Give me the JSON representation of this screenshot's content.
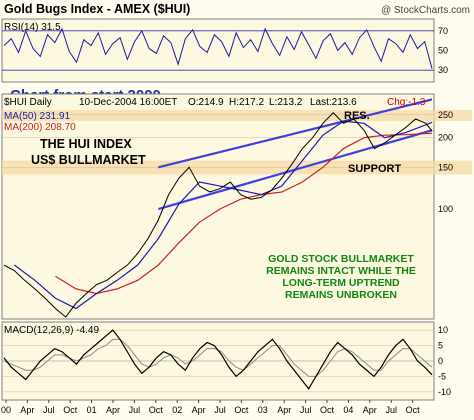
{
  "header": {
    "title": "Gold Bugs Index - AMEX ($HUI)",
    "watermark": "@ StockCharts.com"
  },
  "chart_data": [
    {
      "type": "line",
      "panel": "RSI",
      "label": "RSI(14) 31.5",
      "series": [
        {
          "name": "RSI(14)",
          "color": "#1a1aa8",
          "values": [
            55,
            62,
            48,
            70,
            52,
            44,
            66,
            58,
            72,
            49,
            38,
            61,
            55,
            68,
            46,
            57,
            63,
            41,
            59,
            70,
            52,
            47,
            65,
            58,
            36,
            62,
            71,
            54,
            48,
            66,
            59,
            44,
            68,
            53,
            61,
            49,
            72,
            57,
            45,
            64,
            51,
            69,
            56,
            42,
            60,
            67,
            50,
            58,
            46,
            63,
            71,
            54,
            39,
            62,
            57,
            48,
            66,
            52,
            59,
            31.5
          ]
        }
      ],
      "ylim": [
        20,
        80
      ],
      "y_ticks": [
        30,
        50,
        70
      ],
      "reference_lines": [
        30,
        70
      ],
      "overlay_text": "Chart from start 2000",
      "overlay_color": "#2233aa"
    },
    {
      "type": "line",
      "panel": "price",
      "scale": "log",
      "info_line": {
        "symbol": "$HUI Daily",
        "date": "10-Dec-2004 16:00ET",
        "open": "O:214.9",
        "high": "H:217.2",
        "low": "L:213.2",
        "last": "Last:213.6",
        "change": "Chg:-1.3"
      },
      "legend": [
        {
          "text": "MA(50) 231.91",
          "color": "#1a1aa8"
        },
        {
          "text": "MA(200) 208.70",
          "color": "#cc2222"
        }
      ],
      "ylim": [
        35,
        300
      ],
      "y_ticks": [
        150,
        200,
        250
      ],
      "y_tick_extra": [
        {
          "value": 100,
          "label": "100"
        }
      ],
      "series": [
        {
          "name": "HUI",
          "color": "#000000",
          "points": [
            [
              0.0,
              58
            ],
            [
              0.05,
              55
            ],
            [
              0.1,
              50
            ],
            [
              0.15,
              46
            ],
            [
              0.2,
              42
            ],
            [
              0.25,
              38
            ],
            [
              0.3,
              35
            ],
            [
              0.35,
              40
            ],
            [
              0.4,
              44
            ],
            [
              0.45,
              48
            ],
            [
              0.5,
              50
            ],
            [
              0.55,
              54
            ],
            [
              0.6,
              58
            ],
            [
              0.65,
              65
            ],
            [
              0.7,
              75
            ],
            [
              0.75,
              90
            ],
            [
              0.8,
              115
            ],
            [
              0.85,
              135
            ],
            [
              0.9,
              150
            ],
            [
              0.95,
              125
            ],
            [
              1.0,
              118
            ],
            [
              1.05,
              122
            ],
            [
              1.1,
              130
            ],
            [
              1.15,
              115
            ],
            [
              1.2,
              110
            ],
            [
              1.25,
              112
            ],
            [
              1.3,
              120
            ],
            [
              1.35,
              135
            ],
            [
              1.4,
              155
            ],
            [
              1.45,
              180
            ],
            [
              1.5,
              200
            ],
            [
              1.55,
              230
            ],
            [
              1.6,
              255
            ],
            [
              1.65,
              230
            ],
            [
              1.7,
              240
            ],
            [
              1.75,
              215
            ],
            [
              1.8,
              180
            ],
            [
              1.85,
              190
            ],
            [
              1.9,
              205
            ],
            [
              1.95,
              220
            ],
            [
              2.0,
              240
            ],
            [
              2.05,
              230
            ],
            [
              2.08,
              213.6
            ]
          ]
        },
        {
          "name": "MA(50)",
          "color": "#1a1aa8",
          "points": [
            [
              0.05,
              58
            ],
            [
              0.15,
              50
            ],
            [
              0.25,
              42
            ],
            [
              0.35,
              38
            ],
            [
              0.45,
              44
            ],
            [
              0.55,
              50
            ],
            [
              0.65,
              58
            ],
            [
              0.75,
              75
            ],
            [
              0.85,
              105
            ],
            [
              0.95,
              130
            ],
            [
              1.05,
              125
            ],
            [
              1.15,
              120
            ],
            [
              1.25,
              115
            ],
            [
              1.35,
              125
            ],
            [
              1.45,
              160
            ],
            [
              1.55,
              205
            ],
            [
              1.65,
              235
            ],
            [
              1.75,
              230
            ],
            [
              1.85,
              200
            ],
            [
              1.95,
              210
            ],
            [
              2.08,
              231.91
            ]
          ]
        },
        {
          "name": "MA(200)",
          "color": "#cc2222",
          "points": [
            [
              0.25,
              52
            ],
            [
              0.35,
              46
            ],
            [
              0.45,
              44
            ],
            [
              0.55,
              46
            ],
            [
              0.65,
              50
            ],
            [
              0.75,
              58
            ],
            [
              0.85,
              72
            ],
            [
              0.95,
              88
            ],
            [
              1.05,
              100
            ],
            [
              1.15,
              110
            ],
            [
              1.25,
              115
            ],
            [
              1.35,
              118
            ],
            [
              1.45,
              130
            ],
            [
              1.55,
              150
            ],
            [
              1.65,
              180
            ],
            [
              1.75,
              200
            ],
            [
              1.85,
              205
            ],
            [
              1.95,
              206
            ],
            [
              2.08,
              208.7
            ]
          ]
        }
      ],
      "trendlines": [
        {
          "points": [
            [
              0.75,
              150
            ],
            [
              2.08,
              290
            ]
          ],
          "color": "#4040dd"
        },
        {
          "points": [
            [
              0.75,
              100
            ],
            [
              2.08,
              215
            ]
          ],
          "color": "#4040dd"
        }
      ],
      "bands": [
        {
          "range": [
            235,
            262
          ],
          "label": "RES."
        },
        {
          "range": [
            140,
            160
          ],
          "label": "SUPPORT"
        }
      ],
      "annotations": [
        {
          "text": "THE HUI INDEX",
          "color": "#000000"
        },
        {
          "text": "US$ BULLMARKET",
          "color": "#000000"
        },
        {
          "text": "GOLD STOCK BULLMARKET",
          "color": "#118811"
        },
        {
          "text": "REMAINS INTACT WHILE THE",
          "color": "#118811"
        },
        {
          "text": "LONG-TERM UPTREND",
          "color": "#118811"
        },
        {
          "text": "REMAINS UNBROKEN",
          "color": "#118811"
        }
      ]
    },
    {
      "type": "line",
      "panel": "MACD",
      "label": "MACD(12,26,9) -4.49",
      "ylim": [
        -12,
        12
      ],
      "y_ticks": [
        10,
        5,
        0,
        -5,
        -10
      ],
      "series": [
        {
          "name": "MACD",
          "color": "#000000",
          "values": [
            1,
            -2,
            -4,
            -6,
            -3,
            0,
            2,
            4,
            3,
            1,
            -1,
            2,
            4,
            6,
            8,
            10,
            7,
            3,
            -1,
            -4,
            -2,
            1,
            3,
            2,
            -1,
            -3,
            1,
            4,
            6,
            5,
            2,
            -2,
            -5,
            -3,
            0,
            3,
            5,
            7,
            4,
            0,
            -3,
            -6,
            -9,
            -5,
            -1,
            3,
            6,
            4,
            2,
            -1,
            -3,
            -5,
            -2,
            2,
            5,
            7,
            4,
            0,
            -2,
            -4.49
          ]
        },
        {
          "name": "Signal",
          "color": "#8a8a8a",
          "values": [
            0,
            -1,
            -2,
            -3,
            -3,
            -2,
            0,
            2,
            2,
            1,
            0,
            1,
            2,
            4,
            5,
            7,
            7,
            5,
            2,
            -1,
            -2,
            -1,
            1,
            2,
            1,
            -1,
            0,
            2,
            4,
            4,
            3,
            0,
            -2,
            -3,
            -1,
            1,
            3,
            5,
            5,
            2,
            -1,
            -3,
            -5,
            -5,
            -3,
            0,
            3,
            4,
            3,
            1,
            -1,
            -3,
            -3,
            0,
            2,
            4,
            4,
            2,
            0,
            -2
          ]
        }
      ]
    }
  ],
  "x_axis": {
    "labels": [
      "00",
      "Apr",
      "Jul",
      "Oct",
      "01",
      "Apr",
      "Jul",
      "Oct",
      "02",
      "Apr",
      "Jul",
      "Oct",
      "03",
      "Apr",
      "Jul",
      "Oct",
      "04",
      "Apr",
      "Jul",
      "Oct"
    ]
  }
}
